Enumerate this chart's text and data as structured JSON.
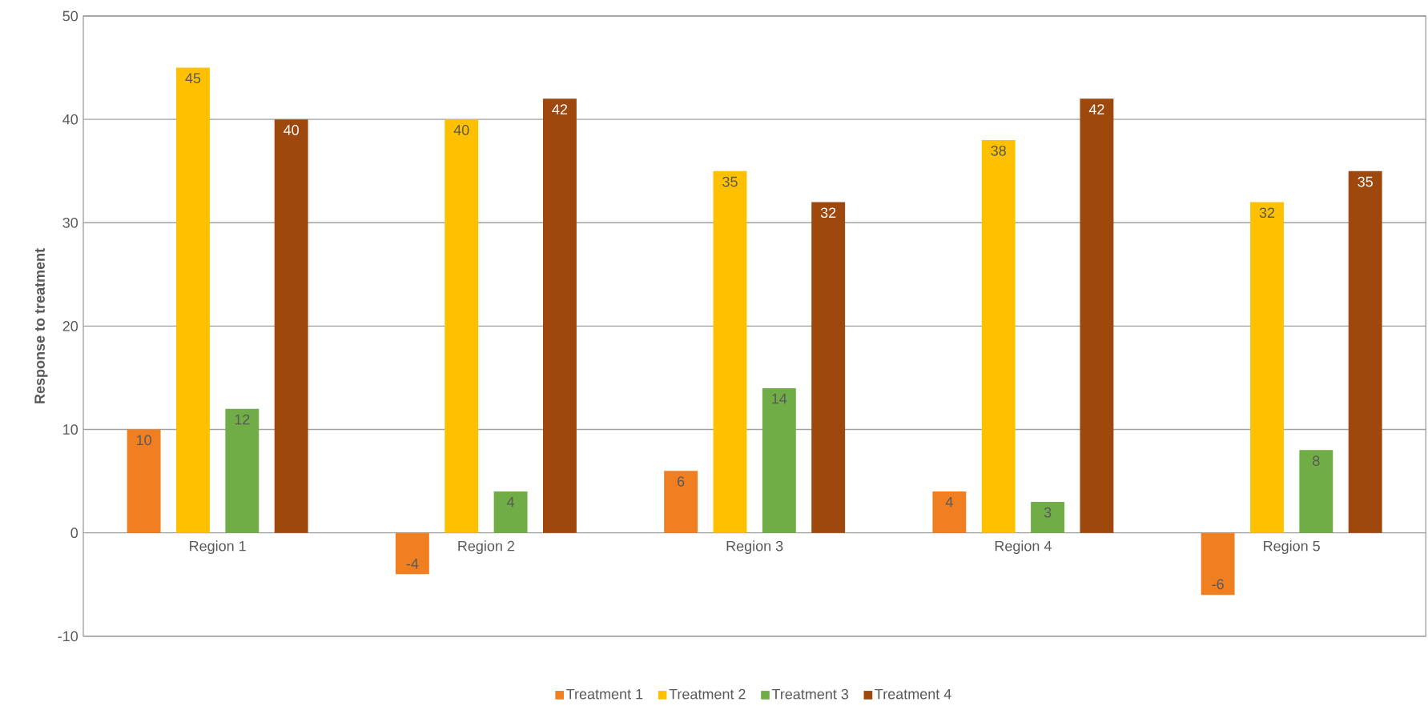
{
  "chart_data": {
    "type": "bar",
    "ylabel": "Response to treatment",
    "categories": [
      "Region 1",
      "Region 2",
      "Region 3",
      "Region 4",
      "Region 5"
    ],
    "series": [
      {
        "name": "Treatment 1",
        "color": "#f07f22",
        "values": [
          10,
          -4,
          6,
          4,
          -6
        ]
      },
      {
        "name": "Treatment 2",
        "color": "#ffc000",
        "values": [
          45,
          40,
          35,
          38,
          32
        ]
      },
      {
        "name": "Treatment 3",
        "color": "#70ad47",
        "values": [
          12,
          4,
          14,
          3,
          8
        ]
      },
      {
        "name": "Treatment 4",
        "color": "#9e480e",
        "values": [
          40,
          42,
          32,
          42,
          35
        ]
      }
    ],
    "ylim": [
      -10,
      50
    ],
    "yticks": [
      -10,
      0,
      10,
      20,
      30,
      40,
      50
    ],
    "grid": true,
    "legend": "bottom",
    "data_labels": true
  }
}
